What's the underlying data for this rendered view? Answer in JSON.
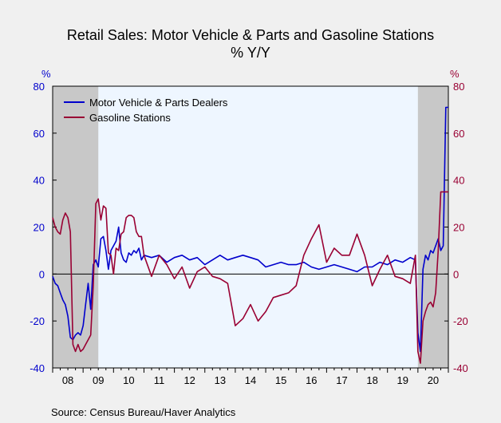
{
  "chart_data": {
    "type": "line",
    "title": "Retail Sales: Motor Vehicle & Parts and Gasoline Stations",
    "subtitle": "% Y/Y",
    "ylabel_left": "%",
    "ylabel_right": "%",
    "ylim": [
      -40,
      80
    ],
    "yticks": [
      -40,
      -20,
      0,
      20,
      40,
      60,
      80
    ],
    "xlim": [
      2008.0,
      2021.0
    ],
    "xtick_labels": [
      "08",
      "09",
      "10",
      "11",
      "12",
      "13",
      "14",
      "15",
      "16",
      "17",
      "18",
      "19",
      "20"
    ],
    "recessions": [
      [
        2008.0,
        2009.5
      ],
      [
        2020.0,
        2021.0
      ]
    ],
    "grid": false,
    "legend_position": "top-left",
    "source": "Source:  Census Bureau/Haver Analytics",
    "colors": {
      "motor": "#0000cc",
      "gas": "#990033",
      "recession": "#c8c8c8",
      "plot_bg": "#eef6ff"
    },
    "series": [
      {
        "name": "Motor Vehicle & Parts Dealers",
        "color": "#0000cc",
        "x": [
          2008.0,
          2008.083,
          2008.167,
          2008.25,
          2008.333,
          2008.417,
          2008.5,
          2008.583,
          2008.667,
          2008.75,
          2008.833,
          2008.917,
          2009.0,
          2009.083,
          2009.167,
          2009.25,
          2009.333,
          2009.417,
          2009.5,
          2009.583,
          2009.667,
          2009.75,
          2009.833,
          2009.917,
          2010.0,
          2010.083,
          2010.167,
          2010.25,
          2010.333,
          2010.417,
          2010.5,
          2010.583,
          2010.667,
          2010.75,
          2010.833,
          2010.917,
          2011.0,
          2011.25,
          2011.5,
          2011.75,
          2012.0,
          2012.25,
          2012.5,
          2012.75,
          2013.0,
          2013.25,
          2013.5,
          2013.75,
          2014.0,
          2014.25,
          2014.5,
          2014.75,
          2015.0,
          2015.25,
          2015.5,
          2015.75,
          2016.0,
          2016.25,
          2016.5,
          2016.75,
          2017.0,
          2017.25,
          2017.5,
          2017.75,
          2018.0,
          2018.25,
          2018.5,
          2018.75,
          2019.0,
          2019.25,
          2019.5,
          2019.75,
          2019.917,
          2020.0,
          2020.083,
          2020.167,
          2020.25,
          2020.333,
          2020.417,
          2020.5,
          2020.583,
          2020.667,
          2020.75,
          2020.833,
          2020.917,
          2021.0
        ],
        "y": [
          -1,
          -4,
          -5,
          -8,
          -11,
          -13,
          -18,
          -27,
          -28,
          -26,
          -25,
          -26,
          -22,
          -13,
          -4,
          -15,
          4,
          6,
          3,
          15,
          16,
          10,
          2,
          10,
          12,
          14,
          20,
          9,
          6,
          5,
          9,
          8,
          10,
          9,
          11,
          6,
          8,
          7,
          8,
          5,
          7,
          8,
          6,
          7,
          4,
          6,
          8,
          6,
          7,
          8,
          7,
          6,
          3,
          4,
          5,
          4,
          4,
          5,
          3,
          2,
          3,
          4,
          3,
          2,
          1,
          3,
          3,
          5,
          4,
          6,
          5,
          7,
          6,
          -25,
          -33,
          2,
          8,
          6,
          10,
          9,
          12,
          15,
          10,
          12,
          71,
          71
        ]
      },
      {
        "name": "Gasoline Stations",
        "color": "#990033",
        "x": [
          2008.0,
          2008.083,
          2008.167,
          2008.25,
          2008.333,
          2008.417,
          2008.5,
          2008.583,
          2008.667,
          2008.75,
          2008.833,
          2008.917,
          2009.0,
          2009.083,
          2009.167,
          2009.25,
          2009.333,
          2009.417,
          2009.5,
          2009.583,
          2009.667,
          2009.75,
          2009.833,
          2009.917,
          2010.0,
          2010.083,
          2010.167,
          2010.25,
          2010.333,
          2010.417,
          2010.5,
          2010.583,
          2010.667,
          2010.75,
          2010.833,
          2010.917,
          2011.0,
          2011.25,
          2011.5,
          2011.75,
          2012.0,
          2012.25,
          2012.5,
          2012.75,
          2013.0,
          2013.25,
          2013.5,
          2013.75,
          2014.0,
          2014.25,
          2014.5,
          2014.75,
          2015.0,
          2015.25,
          2015.5,
          2015.75,
          2016.0,
          2016.25,
          2016.5,
          2016.75,
          2017.0,
          2017.25,
          2017.5,
          2017.75,
          2018.0,
          2018.25,
          2018.5,
          2018.75,
          2019.0,
          2019.25,
          2019.5,
          2019.75,
          2019.917,
          2020.0,
          2020.083,
          2020.167,
          2020.25,
          2020.333,
          2020.417,
          2020.5,
          2020.583,
          2020.667,
          2020.75,
          2020.833,
          2020.917,
          2021.0
        ],
        "y": [
          24,
          20,
          18,
          17,
          23,
          26,
          24,
          18,
          -30,
          -33,
          -30,
          -33,
          -32,
          -30,
          -28,
          -26,
          -5,
          30,
          32,
          23,
          29,
          28,
          9,
          8,
          0,
          11,
          10,
          17,
          18,
          24,
          25,
          25,
          24,
          18,
          16,
          16,
          8,
          -1,
          8,
          4,
          -2,
          3,
          -6,
          1,
          3,
          -1,
          -2,
          -4,
          -22,
          -19,
          -13,
          -20,
          -16,
          -10,
          -9,
          -8,
          -5,
          8,
          15,
          21,
          5,
          11,
          8,
          8,
          17,
          8,
          -5,
          2,
          8,
          -1,
          -2,
          -4,
          8,
          -33,
          -38,
          -20,
          -16,
          -13,
          -12,
          -14,
          -8,
          10,
          35,
          35,
          35,
          35
        ]
      }
    ]
  }
}
